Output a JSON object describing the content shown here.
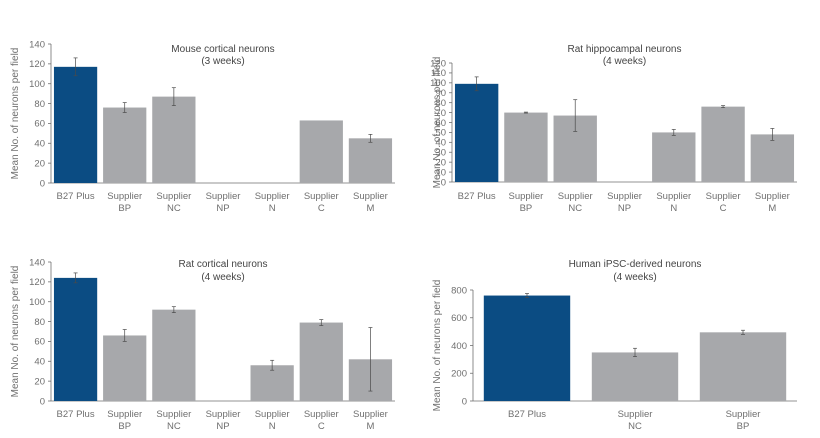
{
  "colors": {
    "highlight": "#0b4c83",
    "bar": "#a7a8ab",
    "axis": "#6f6f6f",
    "errorbar": "#4a4a4a"
  },
  "chart_data": [
    {
      "type": "bar",
      "title": "Mouse cortical neurons",
      "subtitle": "(3 weeks)",
      "ylabel": "Mean No. of neurons per field",
      "ylim": [
        0,
        140
      ],
      "yticks": [
        0,
        20,
        40,
        60,
        80,
        100,
        120,
        140
      ],
      "categories": [
        [
          "B27 Plus"
        ],
        [
          "Supplier",
          "BP"
        ],
        [
          "Supplier",
          "NC"
        ],
        [
          "Supplier",
          "NP"
        ],
        [
          "Supplier",
          "N"
        ],
        [
          "Supplier",
          "C"
        ],
        [
          "Supplier",
          "M"
        ]
      ],
      "values": [
        117,
        76,
        87,
        null,
        null,
        63,
        45
      ],
      "errors": [
        9,
        5,
        9,
        null,
        null,
        null,
        4
      ],
      "highlight_index": 0,
      "grid": false
    },
    {
      "type": "bar",
      "title": "Rat hippocampal neurons",
      "subtitle": "(4 weeks)",
      "ylabel": "Mean No. of neurons per field",
      "ylim": [
        0,
        120
      ],
      "yticks": [
        0,
        10,
        20,
        30,
        40,
        50,
        60,
        70,
        80,
        90,
        100,
        110,
        120
      ],
      "categories": [
        [
          "B27 Plus"
        ],
        [
          "Supplier",
          "BP"
        ],
        [
          "Supplier",
          "NC"
        ],
        [
          "Supplier",
          "NP"
        ],
        [
          "Supplier",
          "N"
        ],
        [
          "Supplier",
          "C"
        ],
        [
          "Supplier",
          "M"
        ]
      ],
      "values": [
        99,
        70,
        67,
        null,
        50,
        76,
        48
      ],
      "errors": [
        7,
        0.5,
        16,
        null,
        3,
        1,
        6
      ],
      "highlight_index": 0,
      "grid": false
    },
    {
      "type": "bar",
      "title": "Rat cortical neurons",
      "subtitle": "(4 weeks)",
      "ylabel": "Mean No. of neurons per field",
      "ylim": [
        0,
        140
      ],
      "yticks": [
        0,
        20,
        40,
        60,
        80,
        100,
        120,
        140
      ],
      "categories": [
        [
          "B27 Plus"
        ],
        [
          "Supplier",
          "BP"
        ],
        [
          "Supplier",
          "NC"
        ],
        [
          "Supplier",
          "NP"
        ],
        [
          "Supplier",
          "N"
        ],
        [
          "Supplier",
          "C"
        ],
        [
          "Supplier",
          "M"
        ]
      ],
      "values": [
        124,
        66,
        92,
        null,
        36,
        79,
        42
      ],
      "errors": [
        5,
        6,
        3,
        null,
        5,
        3,
        32
      ],
      "highlight_index": 0,
      "grid": false
    },
    {
      "type": "bar",
      "title": "Human iPSC-derived neurons",
      "subtitle": "(4 weeks)",
      "ylabel": "Mean No. of neurons per field",
      "ylim": [
        0,
        800
      ],
      "yticks": [
        0,
        200,
        400,
        600,
        800
      ],
      "categories": [
        [
          "B27 Plus"
        ],
        [
          "Supplier",
          "NC"
        ],
        [
          "Supplier",
          "BP"
        ]
      ],
      "values": [
        760,
        350,
        495
      ],
      "errors": [
        15,
        30,
        15
      ],
      "highlight_index": 0,
      "grid": false
    }
  ]
}
